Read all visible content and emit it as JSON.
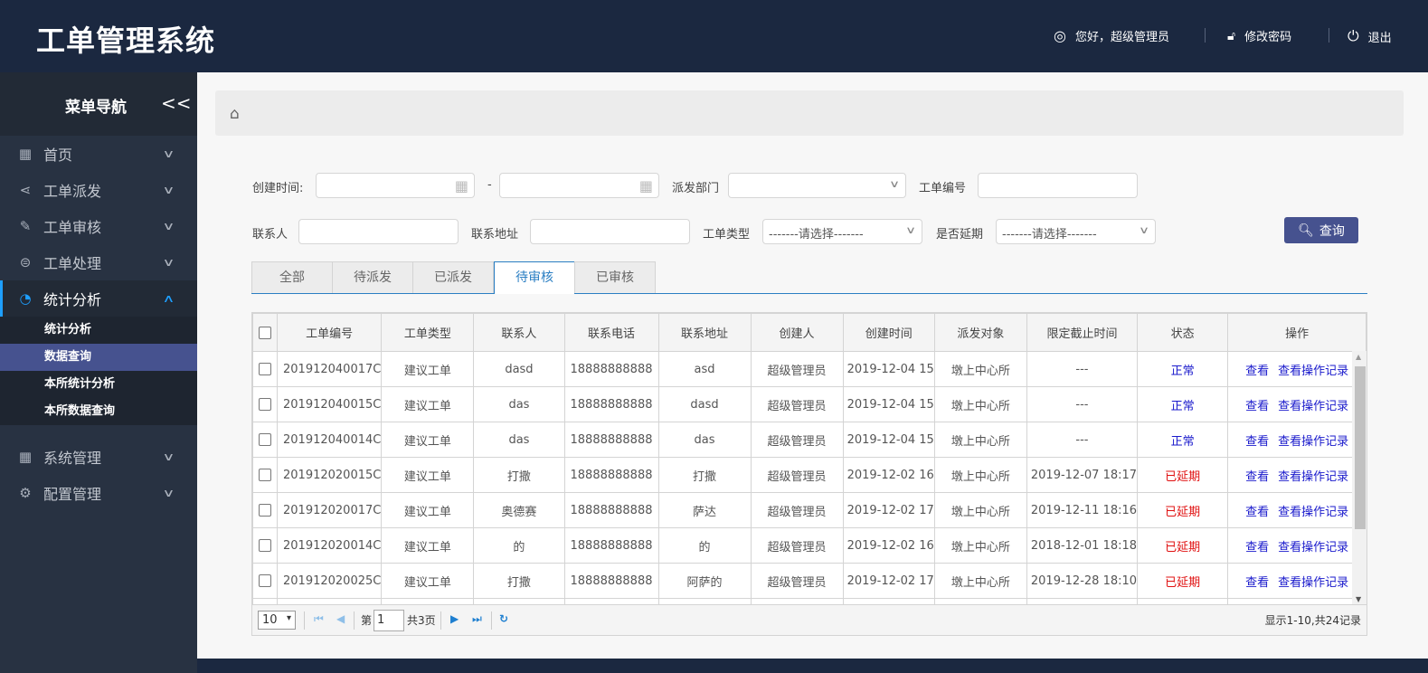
{
  "header": {
    "title": "工单管理系统",
    "greeting": "您好，超级管理员",
    "change_password": "修改密码",
    "logout": "退出"
  },
  "sidebar": {
    "title": "菜单导航",
    "collapse": "<<",
    "items": [
      {
        "label": "首页",
        "icon": "grid-icon"
      },
      {
        "label": "工单派发",
        "icon": "share-icon"
      },
      {
        "label": "工单审核",
        "icon": "edit-icon"
      },
      {
        "label": "工单处理",
        "icon": "database-icon"
      },
      {
        "label": "统计分析",
        "icon": "pie-chart-icon",
        "expanded": true
      },
      {
        "label": "系统管理",
        "icon": "grid-icon"
      },
      {
        "label": "配置管理",
        "icon": "gear-icon"
      }
    ],
    "subitems": [
      {
        "label": "统计分析"
      },
      {
        "label": "数据查询",
        "active": true
      },
      {
        "label": "本所统计分析"
      },
      {
        "label": "本所数据查询"
      }
    ]
  },
  "filters": {
    "create_time": "创建时间:",
    "dash": "-",
    "dept": "派发部门",
    "order_no": "工单编号",
    "contact": "联系人",
    "address": "联系地址",
    "type": "工单类型",
    "type_value": "-------请选择-------",
    "delay": "是否延期",
    "delay_value": "-------请选择-------",
    "search": "查询"
  },
  "tabs": [
    {
      "label": "全部"
    },
    {
      "label": "待派发"
    },
    {
      "label": "已派发"
    },
    {
      "label": "待审核",
      "active": true
    },
    {
      "label": "已审核"
    }
  ],
  "table": {
    "columns": [
      "工单编号",
      "工单类型",
      "联系人",
      "联系电话",
      "联系地址",
      "创建人",
      "创建时间",
      "派发对象",
      "限定截止时间",
      "状态",
      "操作"
    ],
    "view": "查看",
    "view_log": "查看操作记录",
    "rows": [
      [
        "201912040017C",
        "建议工单",
        "dasd",
        "18888888888",
        "asd",
        "超级管理员",
        "2019-12-04 15",
        "墩上中心所",
        "---",
        "正常"
      ],
      [
        "201912040015C",
        "建议工单",
        "das",
        "18888888888",
        "dasd",
        "超级管理员",
        "2019-12-04 15",
        "墩上中心所",
        "---",
        "正常"
      ],
      [
        "201912040014C",
        "建议工单",
        "das",
        "18888888888",
        "das",
        "超级管理员",
        "2019-12-04 15",
        "墩上中心所",
        "---",
        "正常"
      ],
      [
        "201912020015C",
        "建议工单",
        "打撒",
        "18888888888",
        "打撒",
        "超级管理员",
        "2019-12-02 16",
        "墩上中心所",
        "2019-12-07 18:17",
        "已延期"
      ],
      [
        "201912020017C",
        "建议工单",
        "奥德赛",
        "18888888888",
        "萨达",
        "超级管理员",
        "2019-12-02 17",
        "墩上中心所",
        "2019-12-11 18:16",
        "已延期"
      ],
      [
        "201912020014C",
        "建议工单",
        "的",
        "18888888888",
        "的",
        "超级管理员",
        "2019-12-02 16",
        "墩上中心所",
        "2018-12-01 18:18",
        "已延期"
      ],
      [
        "201912020025C",
        "建议工单",
        "打撒",
        "18888888888",
        "阿萨的",
        "超级管理员",
        "2019-12-02 17",
        "墩上中心所",
        "2019-12-28 18:10",
        "已延期"
      ]
    ]
  },
  "pager": {
    "page_size": "10",
    "page_prefix": "第",
    "page": "1",
    "total_pages": "共3页",
    "summary": "显示1-10,共24记录"
  },
  "colors": {
    "header": "#1b2840",
    "accent": "#46528f",
    "link": "#1a1acc",
    "late": "#e01010",
    "tab_active": "#2b7fc3"
  }
}
